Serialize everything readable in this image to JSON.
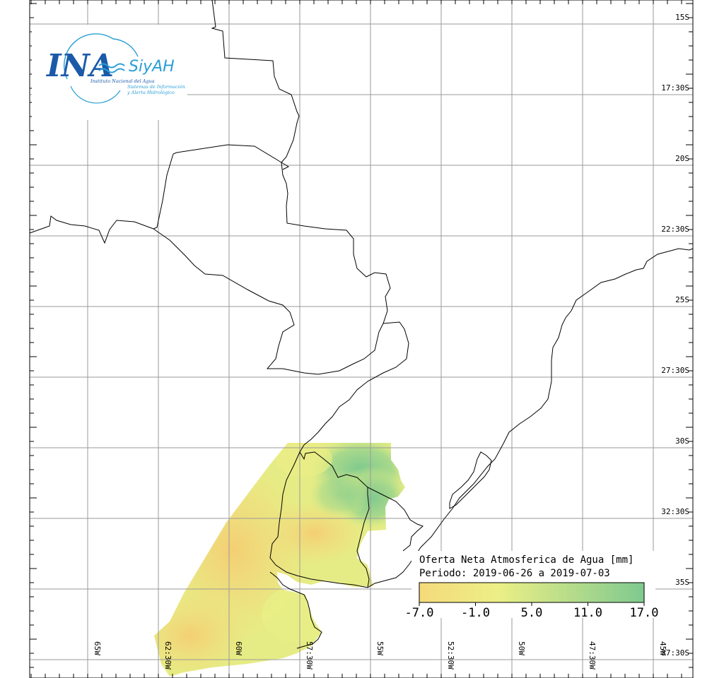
{
  "logo": {
    "brand": "INA",
    "system": "SiyAH",
    "institute": "Instituto Nacional del Agua",
    "subtitle_1": "Sistemas de Información",
    "subtitle_2": "y Alerta Hidrológico"
  },
  "legend": {
    "title": "Oferta Neta Atmosferica de Agua [mm]",
    "period": "Periodo: 2019-06-26 a 2019-07-03",
    "ticks": [
      "-7.0",
      "-1.0",
      "5.0",
      "11.0",
      "17.0"
    ],
    "colors": [
      "#f5da7a",
      "#ecef86",
      "#7fc98f"
    ]
  },
  "axes": {
    "latitudes": [
      "15S",
      "17:30S",
      "20S",
      "22:30S",
      "25S",
      "27:30S",
      "30S",
      "32:30S",
      "35S",
      "37:30S"
    ],
    "longitudes": [
      "65W",
      "62:30W",
      "60W",
      "57:30W",
      "55W",
      "52:30W",
      "50W",
      "47:30W",
      "45W"
    ]
  },
  "colors": {
    "grid": "#9a9a9a",
    "border": "#000000",
    "dry": "#f5da7a",
    "wet": "#7fc98f"
  }
}
